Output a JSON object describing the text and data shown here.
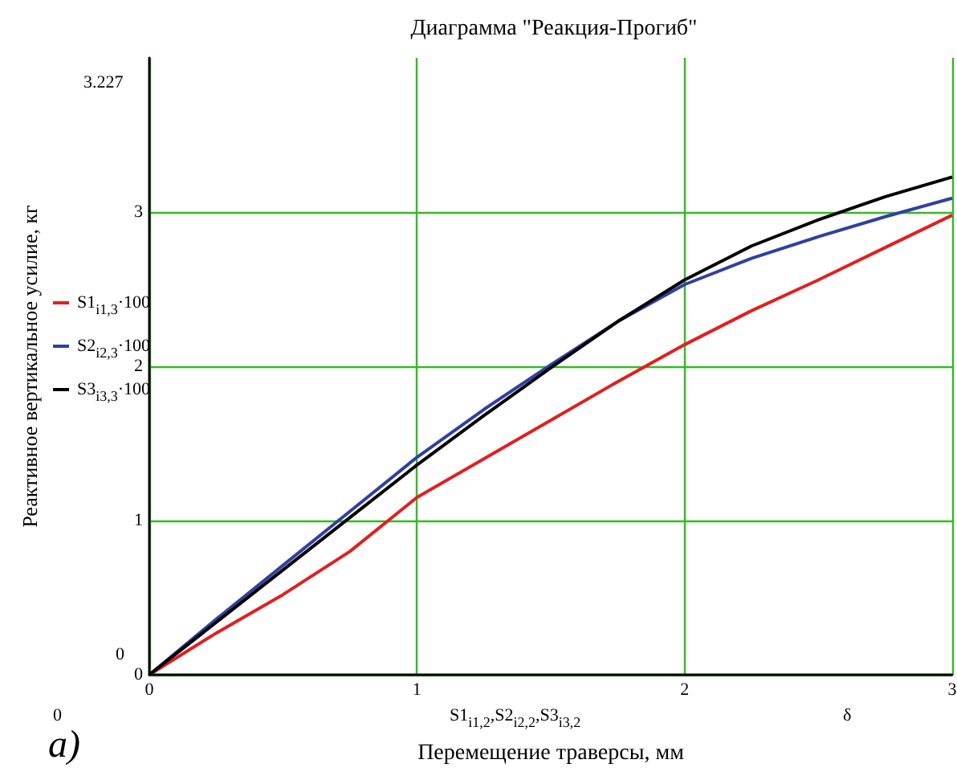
{
  "chart_data": {
    "type": "line",
    "title": "Диаграмма \"Реакция-Прогиб\"",
    "xlabel": "Перемещение траверсы, мм",
    "ylabel": "Реактивное вертикальное усилие, кг",
    "x": [
      0,
      0.25,
      0.5,
      0.75,
      1,
      1.25,
      1.5,
      1.75,
      2,
      2.25,
      2.5,
      2.75,
      3
    ],
    "series": [
      {
        "name": "S1$_{i1,3}$·100",
        "color": "#e02020",
        "values": [
          0,
          0.27,
          0.52,
          0.8,
          1.15,
          1.4,
          1.65,
          1.9,
          2.14,
          2.36,
          2.56,
          2.77,
          2.98
        ]
      },
      {
        "name": "S2$_{i2,3}$·100",
        "color": "#3040a0",
        "values": [
          0,
          0.36,
          0.71,
          1.06,
          1.41,
          1.72,
          2.01,
          2.29,
          2.53,
          2.7,
          2.84,
          2.97,
          3.09
        ]
      },
      {
        "name": "S3$_{i3,3}$·100",
        "color": "#000000",
        "values": [
          0,
          0.34,
          0.68,
          1.02,
          1.36,
          1.68,
          1.99,
          2.29,
          2.56,
          2.78,
          2.95,
          3.1,
          3.227
        ]
      }
    ],
    "xlim": [
      0,
      3
    ],
    "xticks": [
      0,
      1,
      2,
      3
    ],
    "ylim": [
      0,
      4
    ],
    "yticks": [
      0,
      1,
      2,
      3
    ],
    "annotations": [
      "3.227",
      "0",
      "0",
      "δ",
      "S1$_{i1,2}$,S2$_{i2,2}$,S3$_{i3,2}$",
      "а)"
    ],
    "grid": true,
    "legend": "left",
    "marker": "none",
    "line_style": "solid"
  }
}
